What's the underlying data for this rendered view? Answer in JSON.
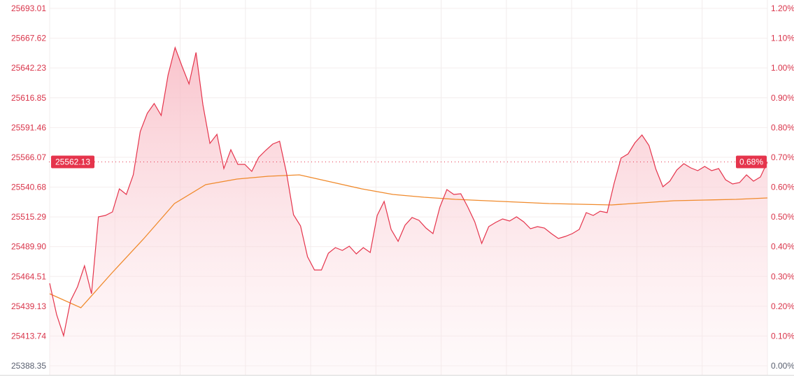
{
  "chart_data": {
    "type": "line",
    "title": "",
    "xlabel": "",
    "ylabel": "",
    "grid": true,
    "prev_close": 25388.35,
    "ylim": [
      25388.35,
      25693.01
    ],
    "y_ticks_left": [
      "25693.01",
      "25667.62",
      "25642.23",
      "25616.85",
      "25591.46",
      "25566.07",
      "25540.68",
      "25515.29",
      "25489.90",
      "25464.51",
      "25439.13",
      "25413.74",
      "25388.35"
    ],
    "y_ticks_right": [
      "1.20%",
      "1.10%",
      "1.00%",
      "0.90%",
      "0.80%",
      "0.70%",
      "0.60%",
      "0.50%",
      "0.40%",
      "0.30%",
      "0.20%",
      "0.10%",
      "0.00%"
    ],
    "current_price_label": "25562.13",
    "current_pct_label": "0.68%",
    "current_price": 25562.13,
    "colors": {
      "price_line": "#e5344c",
      "fill": "#fbd5da",
      "average_line": "#f08a2c",
      "badge": "#e5344c",
      "tick_up": "#d9344a",
      "tick_base": "#5a6070"
    },
    "series": [
      {
        "role": "price",
        "values": [
          25458.7,
          25431.87,
          25413.99,
          25443.8,
          25455.72,
          25473.61,
          25449.76,
          25515.34,
          25516.53,
          25519.52,
          25539.19,
          25534.42,
          25551.11,
          25588.08,
          25603.58,
          25611.93,
          25601.79,
          25636.37,
          25659.62,
          25643.53,
          25628.62,
          25655.45,
          25610.73,
          25577.94,
          25585.69,
          25556.48,
          25572.58,
          25560.06,
          25560.06,
          25554.1,
          25566.02,
          25571.98,
          25577.35,
          25579.73,
          25552.31,
          25517.13,
          25507.59,
          25481.36,
          25470.03,
          25470.03,
          25484.34,
          25489.11,
          25486.72,
          25490.3,
          25483.74,
          25489.11,
          25484.94,
          25516.53,
          25528.46,
          25504.61,
          25494.48,
          25508.19,
          25514.75,
          25512.36,
          25505.8,
          25501.03,
          25523.69,
          25538.59,
          25534.42,
          25535.02,
          25523.69,
          25511.17,
          25492.69,
          25507.0,
          25510.57,
          25513.55,
          25511.76,
          25515.34,
          25511.17,
          25505.21,
          25507.0,
          25505.8,
          25501.03,
          25496.86,
          25498.65,
          25501.03,
          25504.61,
          25518.92,
          25516.53,
          25520.11,
          25518.92,
          25543.96,
          25565.42,
          25569.0,
          25578.54,
          25585.1,
          25576.15,
          25555.88,
          25540.98,
          25545.75,
          25555.29,
          25560.65,
          25557.08,
          25554.69,
          25558.27,
          25554.69,
          25556.48,
          25546.94,
          25543.36,
          25544.56,
          25551.11,
          25545.75,
          25549.33,
          25562.13
        ]
      },
      {
        "role": "average",
        "values": [
          25449.76,
          25437.83,
          25467.65,
          25496.26,
          25526.67,
          25542.77,
          25547.54,
          25549.92,
          25551.11,
          25545.15,
          25539.19,
          25534.42,
          25532.04,
          25530.25,
          25529.05,
          25527.86,
          25526.67,
          25526.07,
          25525.48,
          25527.27,
          25529.05,
          25529.65,
          25530.25,
          25531.44
        ]
      }
    ]
  }
}
